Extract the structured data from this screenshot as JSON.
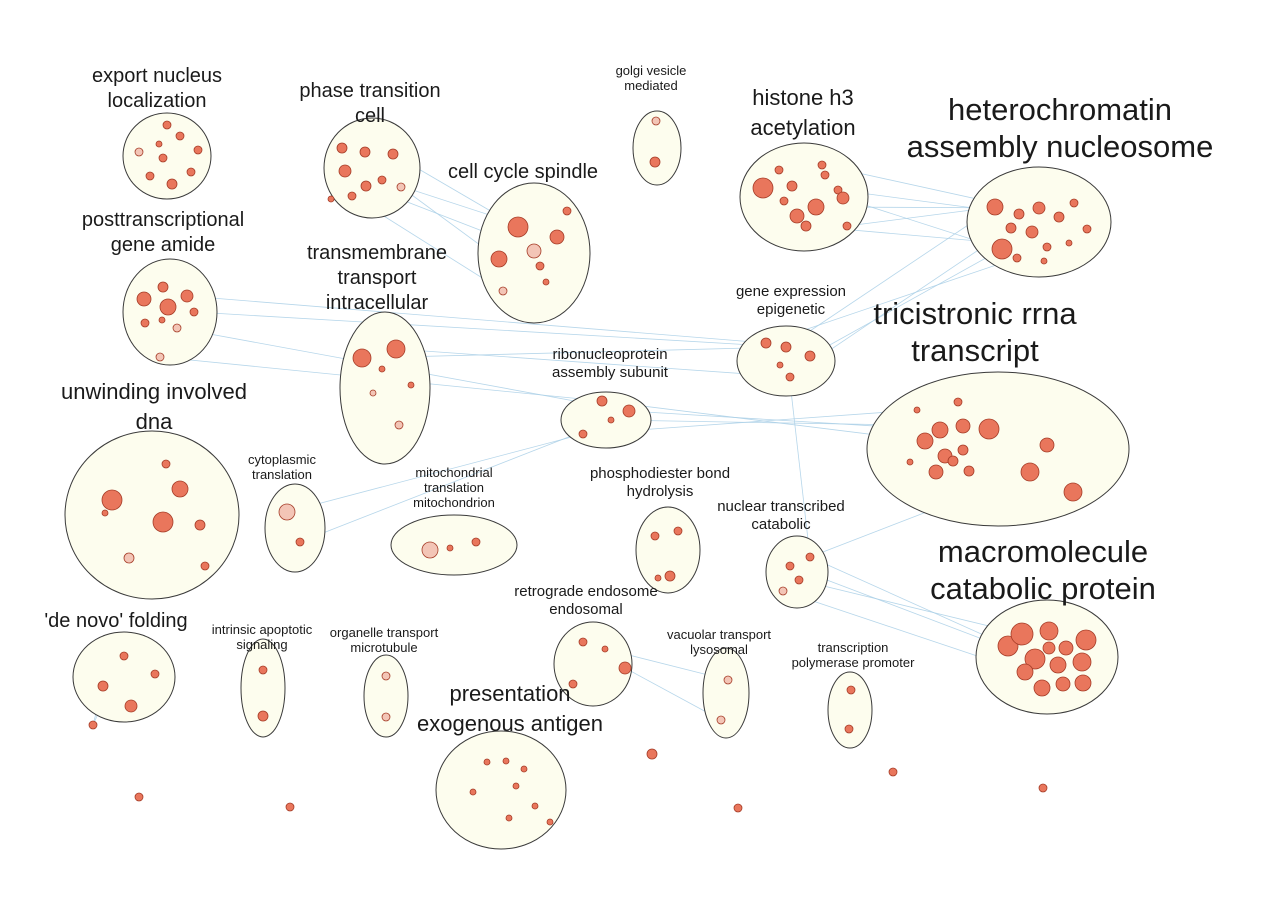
{
  "clusters": [
    {
      "id": "c1",
      "title": [
        "export nucleus",
        "localization"
      ],
      "size": "m"
    },
    {
      "id": "c2",
      "title": [
        "phase transition",
        "cell"
      ],
      "size": "m"
    },
    {
      "id": "c3",
      "title": [
        "golgi vesicle",
        "mediated"
      ],
      "size": "s"
    },
    {
      "id": "c4",
      "title": [
        "histone h3",
        "acetylation"
      ],
      "size": "l"
    },
    {
      "id": "c5",
      "title": [
        "heterochromatin",
        "assembly nucleosome"
      ],
      "size": "xl"
    },
    {
      "id": "c6",
      "title": [
        "cell cycle spindle"
      ],
      "size": "m"
    },
    {
      "id": "c7",
      "title": [
        "posttranscriptional",
        "gene amide"
      ],
      "size": "m"
    },
    {
      "id": "c8",
      "title": [
        "transmembrane",
        "transport",
        "intracellular"
      ],
      "size": "m"
    },
    {
      "id": "c9",
      "title": [
        "gene expression",
        "epigenetic"
      ],
      "size": "sm"
    },
    {
      "id": "c10",
      "title": [
        "tricistronic rrna",
        "transcript"
      ],
      "size": "xl"
    },
    {
      "id": "c11",
      "title": [
        "ribonucleoprotein",
        "assembly subunit"
      ],
      "size": "sm"
    },
    {
      "id": "c12",
      "title": [
        "unwinding involved",
        "dna"
      ],
      "size": "l"
    },
    {
      "id": "c13",
      "title": [
        "cytoplasmic",
        "translation"
      ],
      "size": "s"
    },
    {
      "id": "c14",
      "title": [
        "mitochondrial",
        "translation",
        "mitochondrion"
      ],
      "size": "s"
    },
    {
      "id": "c15",
      "title": [
        "phosphodiester bond",
        "hydrolysis"
      ],
      "size": "sm"
    },
    {
      "id": "c16",
      "title": [
        "nuclear transcribed",
        "catabolic"
      ],
      "size": "sm"
    },
    {
      "id": "c17",
      "title": [
        "macromolecule",
        "catabolic protein"
      ],
      "size": "xl"
    },
    {
      "id": "c18",
      "title": [
        "'de novo' folding"
      ],
      "size": "m"
    },
    {
      "id": "c19",
      "title": [
        "intrinsic apoptotic",
        "signaling"
      ],
      "size": "s"
    },
    {
      "id": "c20",
      "title": [
        "organelle transport",
        "microtubule"
      ],
      "size": "s"
    },
    {
      "id": "c21",
      "title": [
        "retrograde endosome",
        "endosomal"
      ],
      "size": "sm"
    },
    {
      "id": "c22",
      "title": [
        "vacuolar transport",
        "lysosomal"
      ],
      "size": "s"
    },
    {
      "id": "c23",
      "title": [
        "transcription",
        "polymerase promoter"
      ],
      "size": "s"
    },
    {
      "id": "c24",
      "title": [
        "presentation",
        "exogenous antigen"
      ],
      "size": "l"
    }
  ],
  "colors": {
    "ellipse_fill": "#fdfdee",
    "ellipse_stroke": "#3a3a3a",
    "edge": "#a9cfe6",
    "node": "#e9765c",
    "node_pale": "#f3c5b6"
  }
}
